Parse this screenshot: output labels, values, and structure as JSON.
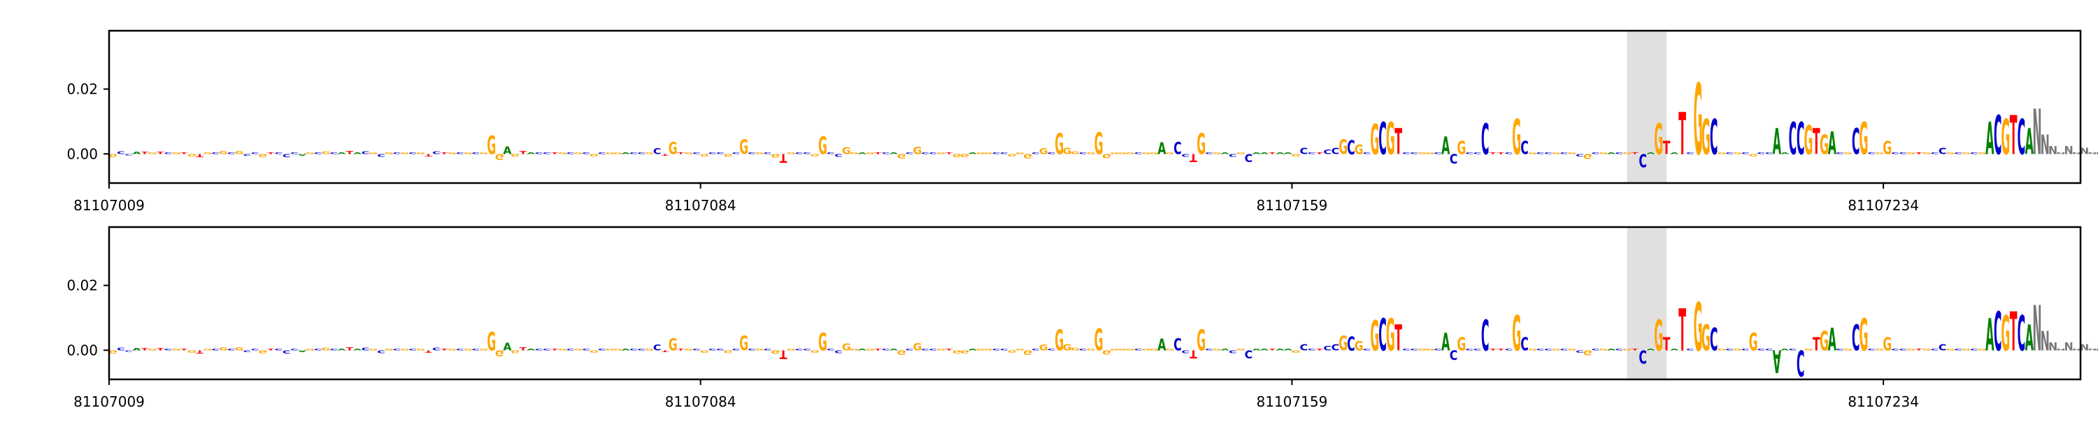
{
  "chart_data": [
    {
      "type": "sequence-logo",
      "title": "",
      "xlabel": "",
      "ylabel": "",
      "ylim": [
        -0.009,
        0.038
      ],
      "xlim": [
        81107009,
        81107259
      ],
      "xticks": [
        "81107009",
        "81107084",
        "81107159",
        "81107234"
      ],
      "yticks": [
        "0.00",
        "0.02"
      ],
      "highlight": [
        81107201.5,
        81107206.5
      ],
      "base_colors": {
        "A": "#008000",
        "C": "#0000cc",
        "G": "#ffa500",
        "T": "#ff0000"
      },
      "seq": "GCCATGTCGTGTGCGCGCCGTCCCAGCGCATACGCGCGCGTCTGCGCGGGAGTACCTGCGCGCGGACCGCTGTGCGCCGCGCGCGTGCCGGCCGGAGTCAGCGCCGTGGAGGCCGGGCGCGGGCGGGGGGCGGAGCCTGCGACGCAATAAGCCTCCGCGCGCGTCCGGCACGCCCTTCGCGCCGCGCGCGACGTCAGTATCGGCGCGCGCCAACCGTGACGCGCGGCCGTGCCGCGCGACGTCA",
      "series": [
        {
          "values": [
            -0.001,
            0.0008,
            -0.0004,
            0.0007,
            0.0007,
            0.0006,
            0.0007,
            0.0006,
            0.0006,
            0.0006,
            -0.0007,
            -0.001,
            0.0006,
            0.0006,
            0.0009,
            0.0006,
            0.0009,
            -0.0005,
            0.0006,
            -0.001,
            0.0006,
            0.0006,
            -0.0009,
            0.0006,
            -0.0006,
            0.0006,
            0.0006,
            0.0008,
            0.0006,
            0.0006,
            0.0009,
            0.0006,
            0.0008,
            0.0006,
            -0.0008,
            0.0006,
            0.0006,
            0.0006,
            0.0006,
            0.0006,
            -0.0007,
            0.0008,
            0.0006,
            0.0006,
            0.0006,
            0.0006,
            0.0006,
            0.0006,
            0.0058,
            -0.0018,
            0.0024,
            -0.0008,
            0.0009,
            0.0006,
            0.0006,
            0.0006,
            0.0006,
            0.0006,
            0.0006,
            0.0006,
            0.0006,
            -0.0007,
            0.0006,
            0.0006,
            0.0006,
            0.0006,
            0.0006,
            0.0006,
            0.0006,
            0.0018,
            -0.0006,
            0.0038,
            0.0006,
            0.0006,
            0.0006,
            -0.0007,
            0.0006,
            0.0006,
            -0.0008,
            0.0006,
            0.0045,
            0.0006,
            0.0006,
            0.0006,
            -0.0011,
            -0.0026,
            0.0006,
            0.0006,
            0.0006,
            -0.0007,
            0.0055,
            0.0006,
            -0.0008,
            0.0021,
            0.0006,
            0.0006,
            0.0006,
            0.0006,
            0.0006,
            0.0006,
            -0.0014,
            0.0006,
            0.0022,
            0.0006,
            0.0006,
            0.0006,
            0.0006,
            -0.0009,
            -0.0009,
            0.0006,
            0.0006,
            0.0006,
            0.0006,
            0.0006,
            -0.0007,
            0.0006,
            -0.0014,
            0.0006,
            0.0018,
            0.0006,
            0.0065,
            0.0019,
            0.0008,
            0.0006,
            0.0006,
            0.0067,
            -0.0012,
            0.0006,
            0.0006,
            0.0006,
            0.0006,
            0.0006,
            0.0006,
            0.0036,
            0.0006,
            0.0038,
            -0.0008,
            -0.0025,
            0.0065,
            0.0006,
            0.0006,
            0.0006,
            -0.0008,
            0.0006,
            -0.0025,
            0.0006,
            0.0006,
            0.0006,
            0.0006,
            0.0006,
            -0.0007,
            0.0019,
            0.0006,
            0.0006,
            0.0014,
            0.002,
            0.0045,
            0.0044,
            0.003,
            0.0006,
            0.0094,
            0.01,
            0.01,
            0.008,
            0.0006,
            0.0006,
            0.0006,
            0.0006,
            0.0006,
            0.0055,
            -0.003,
            0.004,
            0.0006,
            0.0006,
            0.0095,
            0.0006,
            0.0006,
            0.0006,
            0.011,
            0.004,
            0.0006,
            0.0006,
            0.0006,
            0.0006,
            0.0006,
            0.0006,
            -0.0007,
            -0.0015,
            0.0006,
            0.0006,
            0.0006,
            0.0006,
            0.0006,
            0.0006,
            -0.004,
            0.0006,
            0.0095,
            0.004,
            0.0006,
            0.013,
            0.0006,
            0.022,
            0.011,
            0.011,
            0.0006,
            0.0006,
            0.0006,
            0.0006,
            -0.0007,
            0.0006,
            0.0006,
            0.008,
            0.0006,
            0.01,
            0.01,
            0.009,
            0.008,
            0.006,
            0.007,
            0.0006,
            0.0006,
            0.008,
            0.01,
            0.0006,
            0.0006,
            0.004,
            0.0006,
            0.0006,
            0.0006,
            0.0006,
            0.0006,
            0.0006,
            0.002,
            0.0006,
            0.0006,
            0.0006,
            0.0006,
            0.0006,
            0.01,
            0.012,
            0.011,
            0.012,
            0.011,
            0.008,
            0.014,
            0.006,
            0.0025,
            0.0006,
            0.0025,
            0.0006,
            0.002,
            0.0006,
            0.0006
          ]
        },
        {
          "values": [
            -0.001,
            0.0008,
            -0.0004,
            0.0007,
            0.0007,
            0.0006,
            0.0007,
            0.0006,
            0.0006,
            0.0006,
            -0.0007,
            -0.001,
            0.0006,
            0.0006,
            0.0009,
            0.0006,
            0.0009,
            -0.0005,
            0.0006,
            -0.001,
            0.0006,
            0.0006,
            -0.0009,
            0.0006,
            -0.0006,
            0.0006,
            0.0006,
            0.0008,
            0.0006,
            0.0006,
            0.0009,
            0.0006,
            0.0008,
            0.0006,
            -0.0008,
            0.0006,
            0.0006,
            0.0006,
            0.0006,
            0.0006,
            -0.0007,
            0.0008,
            0.0006,
            0.0006,
            0.0006,
            0.0006,
            0.0006,
            0.0006,
            0.0058,
            -0.0018,
            0.0024,
            -0.0008,
            0.0009,
            0.0006,
            0.0006,
            0.0006,
            0.0006,
            0.0006,
            0.0006,
            0.0006,
            0.0006,
            -0.0007,
            0.0006,
            0.0006,
            0.0006,
            0.0006,
            0.0006,
            0.0006,
            0.0006,
            0.0018,
            -0.0006,
            0.0038,
            0.0006,
            0.0006,
            0.0006,
            -0.0007,
            0.0006,
            0.0006,
            -0.0008,
            0.0006,
            0.0045,
            0.0006,
            0.0006,
            0.0006,
            -0.0011,
            -0.0026,
            0.0006,
            0.0006,
            0.0006,
            -0.0007,
            0.0055,
            0.0006,
            -0.0008,
            0.0021,
            0.0006,
            0.0006,
            0.0006,
            0.0006,
            0.0006,
            0.0006,
            -0.0014,
            0.0006,
            0.0022,
            0.0006,
            0.0006,
            0.0006,
            0.0006,
            -0.0009,
            -0.0009,
            0.0006,
            0.0006,
            0.0006,
            0.0006,
            0.0006,
            -0.0007,
            0.0006,
            -0.0014,
            0.0006,
            0.0018,
            0.0006,
            0.0065,
            0.0019,
            0.0008,
            0.0006,
            0.0006,
            0.0067,
            -0.0012,
            0.0006,
            0.0006,
            0.0006,
            0.0006,
            0.0006,
            0.0006,
            0.0036,
            0.0006,
            0.0038,
            -0.0008,
            -0.0025,
            0.0065,
            0.0006,
            0.0006,
            0.0006,
            -0.0008,
            0.0006,
            -0.0025,
            0.0006,
            0.0006,
            0.0006,
            0.0006,
            0.0006,
            -0.0007,
            0.0019,
            0.0006,
            0.0006,
            0.0014,
            0.002,
            0.0045,
            0.0044,
            0.003,
            0.0006,
            0.0094,
            0.01,
            0.01,
            0.008,
            0.0006,
            0.0006,
            0.0006,
            0.0006,
            0.0006,
            0.0055,
            -0.003,
            0.004,
            0.0006,
            0.0006,
            0.0095,
            0.0006,
            0.0006,
            0.0006,
            0.011,
            0.004,
            0.0006,
            0.0006,
            0.0006,
            0.0006,
            0.0006,
            0.0006,
            -0.0007,
            -0.0015,
            0.0006,
            0.0006,
            0.0006,
            0.0006,
            0.0006,
            0.0006,
            -0.004,
            0.0006,
            0.0095,
            0.004,
            0.0006,
            0.013,
            0.0006,
            0.015,
            0.008,
            0.007,
            0.0006,
            0.0006,
            0.0006,
            0.0006,
            0.0055,
            0.0006,
            0.0006,
            -0.007,
            0.0006,
            0.0006,
            -0.008,
            0.0006,
            0.004,
            0.006,
            0.007,
            0.0006,
            0.0006,
            0.008,
            0.01,
            0.0006,
            0.0006,
            0.004,
            0.0006,
            0.0006,
            0.0006,
            0.0006,
            0.0006,
            0.0006,
            0.002,
            0.0006,
            0.0006,
            0.0006,
            0.0006,
            0.0006,
            0.01,
            0.012,
            0.011,
            0.012,
            0.011,
            0.008,
            0.014,
            0.006,
            0.0025,
            0.0006,
            0.0025,
            0.0006,
            0.002,
            0.0006,
            0.0006
          ]
        }
      ]
    }
  ]
}
